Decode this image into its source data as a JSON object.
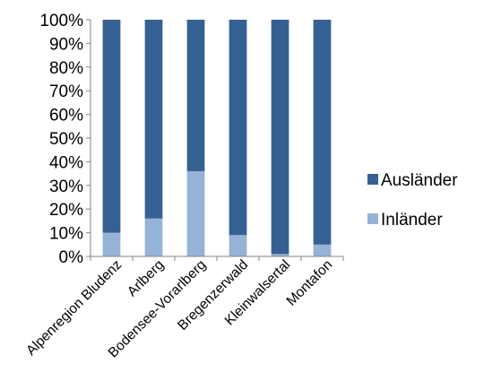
{
  "chart_data": {
    "type": "bar",
    "stacked": true,
    "percent_stacked": true,
    "categories": [
      "Alpenregion Bludenz",
      "Arlberg",
      "Bodensee-Vorarlberg",
      "Bregenzerwald",
      "Kleinwalsertal",
      "Montafon"
    ],
    "series": [
      {
        "name": "Inländer",
        "values": [
          10,
          16,
          36,
          9,
          1,
          5
        ],
        "color": "#95b3d7"
      },
      {
        "name": "Ausländer",
        "values": [
          90,
          84,
          64,
          91,
          99,
          95
        ],
        "color": "#376092"
      }
    ],
    "legend_order": [
      "Ausländer",
      "Inländer"
    ],
    "ylim": [
      0,
      100
    ],
    "yticks": [
      "0%",
      "10%",
      "20%",
      "30%",
      "40%",
      "50%",
      "60%",
      "70%",
      "80%",
      "90%",
      "100%"
    ],
    "title": "",
    "xlabel": "",
    "ylabel": "",
    "grid": false,
    "legend_position": "right"
  }
}
